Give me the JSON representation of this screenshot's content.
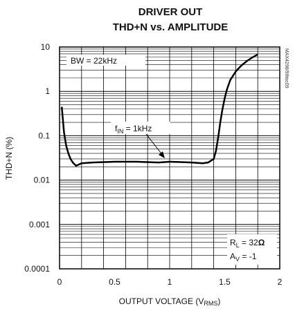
{
  "chart_data": {
    "type": "line",
    "title_line1": "DRIVER OUT",
    "title_line2": "THD+N vs. AMPLITUDE",
    "xlabel": "OUTPUT VOLTAGE (V",
    "xlabel_sub": "RMS",
    "xlabel_end": ")",
    "ylabel": "THD+N (%)",
    "xlim": [
      0,
      2
    ],
    "ylim": [
      0.0001,
      10
    ],
    "yscale": "log",
    "grid": true,
    "x_ticks": [
      "0",
      "0.5",
      "1",
      "1.5",
      "2"
    ],
    "y_ticks": [
      "10",
      "1",
      "0.1",
      "0.01",
      "0.001",
      "0.0001"
    ],
    "annotations": {
      "bw": "BW = 22kHz",
      "fin_main": "f",
      "fin_sub": "IN",
      "fin_val": " = 1kHz",
      "rl_main": "R",
      "rl_sub": "L",
      "rl_val": " = 32",
      "rl_unit": "Ω",
      "av_main": "A",
      "av_sub": "V",
      "av_val": " = -1"
    },
    "side_code": "MAX4298/99toc09",
    "series": [
      {
        "x": [
          0.02,
          0.04,
          0.06,
          0.08,
          0.1,
          0.12,
          0.15,
          0.2,
          0.3,
          0.5,
          0.7,
          0.9,
          1.0,
          1.2,
          1.3,
          1.35,
          1.4,
          1.42,
          1.44,
          1.46,
          1.48,
          1.5,
          1.52,
          1.55,
          1.6,
          1.65,
          1.7,
          1.75,
          1.8
        ],
        "y": [
          0.45,
          0.12,
          0.06,
          0.04,
          0.03,
          0.025,
          0.021,
          0.024,
          0.025,
          0.026,
          0.026,
          0.025,
          0.026,
          0.025,
          0.024,
          0.025,
          0.03,
          0.045,
          0.09,
          0.2,
          0.4,
          0.7,
          1.1,
          1.8,
          2.8,
          3.8,
          4.8,
          5.8,
          6.8
        ]
      }
    ]
  }
}
